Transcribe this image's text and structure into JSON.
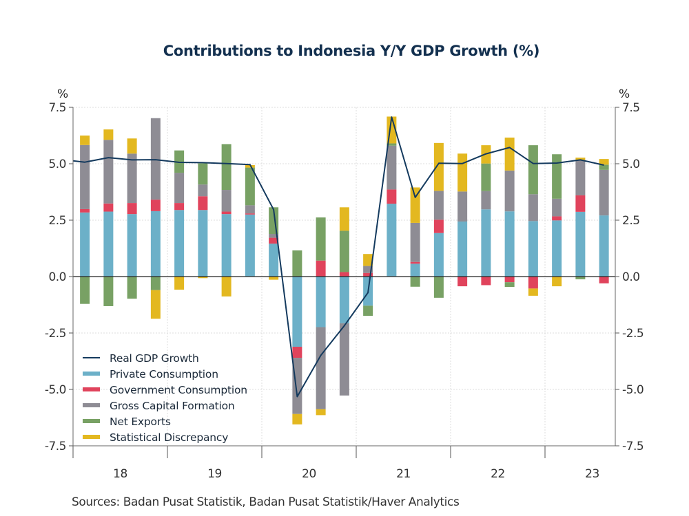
{
  "chart_data": {
    "type": "bar",
    "stacked": true,
    "title": "Contributions to Indonesia Y/Y GDP Growth (%)",
    "left_unit": "%",
    "right_unit": "%",
    "xlabel": "",
    "ylabel": "%",
    "ylim": [
      -7.5,
      7.5
    ],
    "yticks": [
      7.5,
      5.0,
      2.5,
      0.0,
      -2.5,
      -5.0,
      -7.5
    ],
    "ytick_labels": [
      "7.5",
      "5.0",
      "2.5",
      "0.0",
      "-2.5",
      "-5.0",
      "-7.5"
    ],
    "grid": true,
    "legend_position": "bottom-left",
    "year_labels": [
      "18",
      "19",
      "20",
      "21",
      "22",
      "23"
    ],
    "categories": [
      "2018Q1",
      "2018Q2",
      "2018Q3",
      "2018Q4",
      "2019Q1",
      "2019Q2",
      "2019Q3",
      "2019Q4",
      "2020Q1",
      "2020Q2",
      "2020Q3",
      "2020Q4",
      "2021Q1",
      "2021Q2",
      "2021Q3",
      "2021Q4",
      "2022Q1",
      "2022Q2",
      "2022Q3",
      "2022Q4",
      "2023Q1",
      "2023Q2",
      "2023Q3"
    ],
    "series": [
      {
        "name": "Private Consumption",
        "kind": "bar",
        "color": "#6cb0c8",
        "values": [
          2.84,
          2.88,
          2.77,
          2.9,
          2.95,
          2.95,
          2.77,
          2.75,
          1.46,
          -3.11,
          -2.24,
          -2.07,
          -1.29,
          3.23,
          0.57,
          1.93,
          2.44,
          2.98,
          2.89,
          2.46,
          2.49,
          2.87,
          2.71
        ]
      },
      {
        "name": "Government Consumption",
        "kind": "bar",
        "color": "#e0435c",
        "values": [
          0.15,
          0.36,
          0.49,
          0.51,
          0.31,
          0.61,
          0.11,
          0.05,
          0.26,
          -0.49,
          0.71,
          0.2,
          0.16,
          0.63,
          0.08,
          0.59,
          -0.43,
          -0.38,
          -0.25,
          -0.53,
          0.18,
          0.73,
          -0.3
        ]
      },
      {
        "name": "Gross Capital Formation",
        "kind": "bar",
        "color": "#8e8c94",
        "values": [
          2.84,
          2.82,
          2.19,
          3.61,
          1.34,
          0.52,
          0.96,
          0.36,
          0.17,
          -2.49,
          -3.64,
          -3.2,
          0.31,
          1.94,
          1.73,
          1.28,
          1.33,
          0.81,
          1.81,
          1.19,
          0.78,
          1.56,
          2.02
        ]
      },
      {
        "name": "Net Exports",
        "kind": "bar",
        "color": "#78a164",
        "values": [
          -1.21,
          -1.31,
          -0.98,
          -0.6,
          0.99,
          0.94,
          2.03,
          1.67,
          1.18,
          1.16,
          1.91,
          1.83,
          -0.45,
          0.1,
          -0.45,
          -0.94,
          0.0,
          1.22,
          -0.21,
          2.17,
          1.97,
          -0.12,
          0.23
        ]
      },
      {
        "name": "Statistical Discrepancy",
        "kind": "bar",
        "color": "#e3b820",
        "values": [
          0.42,
          0.46,
          0.67,
          -1.27,
          -0.58,
          -0.07,
          -0.88,
          0.11,
          -0.14,
          -0.46,
          -0.26,
          1.04,
          0.53,
          1.19,
          1.57,
          2.12,
          1.68,
          0.81,
          1.46,
          -0.32,
          -0.43,
          0.11,
          0.25
        ]
      },
      {
        "name": "Real GDP Growth",
        "kind": "line",
        "color": "#143a5e",
        "values": [
          5.07,
          5.27,
          5.17,
          5.18,
          5.06,
          5.05,
          5.01,
          4.96,
          2.97,
          -5.32,
          -3.49,
          -2.17,
          -0.71,
          7.07,
          3.51,
          5.02,
          5.01,
          5.44,
          5.72,
          5.01,
          5.03,
          5.17,
          4.94
        ]
      }
    ],
    "legend_order": [
      "Real GDP Growth",
      "Private Consumption",
      "Government Consumption",
      "Gross Capital Formation",
      "Net Exports",
      "Statistical Discrepancy"
    ]
  },
  "footer": {
    "sources": "Sources:  Badan Pusat Statistik, Badan Pusat Statistik/Haver Analytics"
  }
}
